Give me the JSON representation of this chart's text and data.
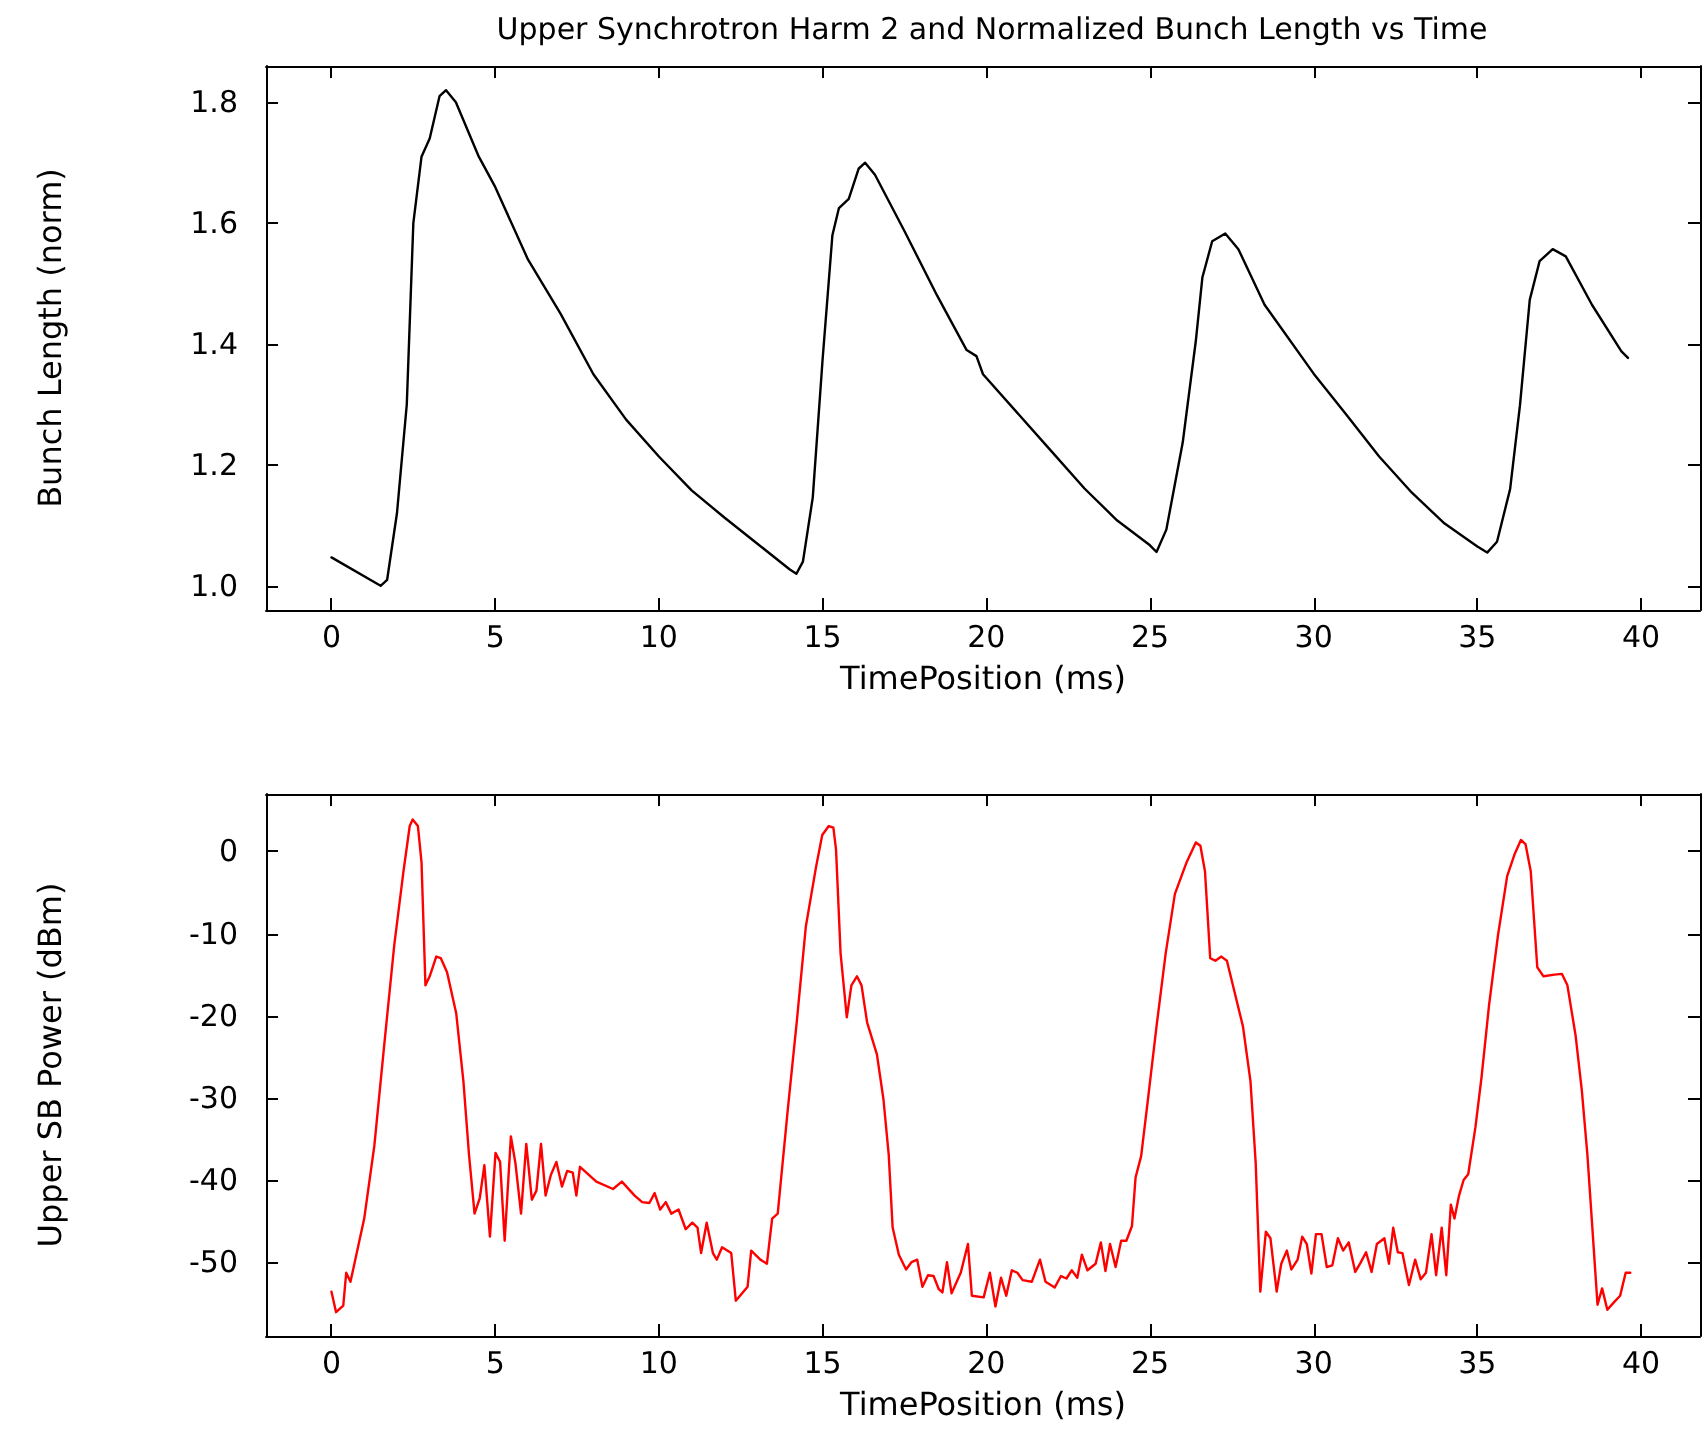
{
  "chart_data": [
    {
      "type": "line",
      "title": "Upper Synchrotron Harm 2 and Normalized Bunch Length vs Time",
      "xlabel": "TimePosition (ms)",
      "ylabel": "Bunch Length (norm)",
      "xlim": [
        -2,
        41.8
      ],
      "xticks": [
        0,
        5,
        10,
        15,
        20,
        25,
        30,
        35,
        40
      ],
      "ylim": [
        0.96,
        1.86
      ],
      "yticks": [
        {
          "value": 1,
          "label": "1.0"
        },
        1.2,
        1.4,
        1.6,
        1.8
      ],
      "grid": false,
      "marker": "none",
      "line_style": "solid",
      "series": [
        {
          "color": "#000000",
          "x": [
            0,
            1.5,
            1.7,
            2.0,
            2.3,
            2.5,
            2.75,
            3.0,
            3.3,
            3.5,
            3.8,
            4.5,
            5,
            6,
            7,
            8,
            9,
            10,
            11,
            12,
            13,
            14,
            14.2,
            14.4,
            14.7,
            15,
            15.3,
            15.5,
            15.8,
            16.1,
            16.3,
            16.6,
            17.5,
            18.5,
            19.4,
            19.7,
            19.9,
            21,
            22,
            23,
            24,
            25,
            25.2,
            25.5,
            26,
            26.4,
            26.6,
            26.9,
            27.3,
            27.7,
            28.5,
            30,
            31,
            32,
            33,
            34,
            35,
            35.3,
            35.6,
            36,
            36.3,
            36.6,
            36.9,
            37.3,
            37.7,
            38.5,
            39.4,
            39.6
          ],
          "values": [
            1.047,
            1.0,
            1.01,
            1.12,
            1.3,
            1.6,
            1.71,
            1.74,
            1.81,
            1.82,
            1.8,
            1.71,
            1.66,
            1.54,
            1.45,
            1.35,
            1.275,
            1.214,
            1.158,
            1.113,
            1.07,
            1.027,
            1.02,
            1.04,
            1.146,
            1.374,
            1.58,
            1.625,
            1.64,
            1.69,
            1.7,
            1.68,
            1.587,
            1.48,
            1.39,
            1.38,
            1.35,
            1.283,
            1.222,
            1.161,
            1.108,
            1.067,
            1.056,
            1.093,
            1.237,
            1.405,
            1.51,
            1.57,
            1.583,
            1.557,
            1.465,
            1.351,
            1.283,
            1.214,
            1.154,
            1.103,
            1.065,
            1.055,
            1.073,
            1.16,
            1.298,
            1.473,
            1.537,
            1.557,
            1.545,
            1.465,
            1.388,
            1.377
          ]
        }
      ]
    },
    {
      "type": "line",
      "xlabel": "TimePosition (ms)",
      "ylabel": "Upper SB Power (dBm)",
      "xlim": [
        -2,
        41.8
      ],
      "xticks": [
        0,
        5,
        10,
        15,
        20,
        25,
        30,
        35,
        40
      ],
      "ylim": [
        -59,
        7
      ],
      "yticks": [
        0,
        -10,
        -20,
        -30,
        -40,
        -50
      ],
      "grid": false,
      "marker": "none",
      "line_style": "solid",
      "series": [
        {
          "color": "#ff0000",
          "x": [
            0,
            0.14,
            0.36,
            0.45,
            0.58,
            1.0,
            1.31,
            1.61,
            1.92,
            2.2,
            2.39,
            2.48,
            2.64,
            2.75,
            2.87,
            3.0,
            3.2,
            3.34,
            3.53,
            3.81,
            4.03,
            4.2,
            4.37,
            4.53,
            4.67,
            4.84,
            5.01,
            5.15,
            5.29,
            5.48,
            5.62,
            5.79,
            5.95,
            6.12,
            6.26,
            6.4,
            6.54,
            6.7,
            6.87,
            7.04,
            7.2,
            7.37,
            7.48,
            7.59,
            8.09,
            8.6,
            8.87,
            9.26,
            9.49,
            9.71,
            9.87,
            10.04,
            10.21,
            10.38,
            10.6,
            10.82,
            11.02,
            11.18,
            11.29,
            11.46,
            11.65,
            11.77,
            11.93,
            12.21,
            12.35,
            12.71,
            12.82,
            13.1,
            13.3,
            13.46,
            13.63,
            13.94,
            14.21,
            14.49,
            14.8,
            14.99,
            15.19,
            15.33,
            15.41,
            15.55,
            15.74,
            15.88,
            16.05,
            16.19,
            16.36,
            16.66,
            16.86,
            17.02,
            17.14,
            17.33,
            17.55,
            17.72,
            17.89,
            18.05,
            18.22,
            18.39,
            18.55,
            18.66,
            18.8,
            18.94,
            19.22,
            19.44,
            19.56,
            19.92,
            20.11,
            20.28,
            20.45,
            20.61,
            20.78,
            20.95,
            21.11,
            21.39,
            21.64,
            21.81,
            22.09,
            22.28,
            22.45,
            22.61,
            22.78,
            22.92,
            23.09,
            23.34,
            23.5,
            23.64,
            23.78,
            23.95,
            24.12,
            24.28,
            24.45,
            24.56,
            24.73,
            24.92,
            25.2,
            25.48,
            25.76,
            26.12,
            26.4,
            26.54,
            26.68,
            26.84,
            27.0,
            27.18,
            27.35,
            27.57,
            27.84,
            28.07,
            28.23,
            28.37,
            28.54,
            28.68,
            28.87,
            29.01,
            29.18,
            29.32,
            29.51,
            29.65,
            29.79,
            29.93,
            30.07,
            30.24,
            30.4,
            30.57,
            30.74,
            30.9,
            31.07,
            31.27,
            31.43,
            31.6,
            31.77,
            31.93,
            32.16,
            32.3,
            32.43,
            32.57,
            32.71,
            32.91,
            33.1,
            33.27,
            33.43,
            33.6,
            33.74,
            33.91,
            34.05,
            34.19,
            34.3,
            34.44,
            34.58,
            34.72,
            34.94,
            35.13,
            35.36,
            35.63,
            35.91,
            36.13,
            36.33,
            36.47,
            36.63,
            36.83,
            37.02,
            37.36,
            37.58,
            37.75,
            38.0,
            38.19,
            38.36,
            38.53,
            38.67,
            38.81,
            38.97,
            39.17,
            39.36,
            39.53,
            39.67
          ],
          "values": [
            -53.6,
            -56.1,
            -55.3,
            -51.3,
            -52.4,
            -44.7,
            -35.8,
            -23.6,
            -11.3,
            -2.4,
            3.1,
            3.9,
            3.1,
            -1.3,
            -16.3,
            -15.2,
            -12.8,
            -13,
            -14.7,
            -19.7,
            -28,
            -36.9,
            -44.1,
            -42.2,
            -38.2,
            -46.9,
            -36.7,
            -37.8,
            -47.4,
            -34.7,
            -38,
            -44.1,
            -35.6,
            -42.4,
            -41.3,
            -35.6,
            -41.9,
            -39.4,
            -37.8,
            -40.8,
            -38.9,
            -39.1,
            -41.9,
            -38.4,
            -40.2,
            -41.1,
            -40.2,
            -41.9,
            -42.7,
            -42.8,
            -41.6,
            -43.6,
            -42.7,
            -44.1,
            -43.6,
            -46,
            -45.2,
            -45.8,
            -48.9,
            -45.2,
            -48.9,
            -49.7,
            -48.2,
            -48.9,
            -54.7,
            -53,
            -48.6,
            -49.7,
            -50.2,
            -44.7,
            -44.1,
            -31.3,
            -20.8,
            -9.1,
            -1.9,
            2,
            3.1,
            2.9,
            0.3,
            -12.4,
            -20.2,
            -16.3,
            -15.2,
            -16.3,
            -20.8,
            -24.7,
            -30.2,
            -36.9,
            -45.8,
            -49.1,
            -50.9,
            -50,
            -49.7,
            -53,
            -51.6,
            -51.7,
            -53.3,
            -53.7,
            -50,
            -53.8,
            -51.3,
            -47.8,
            -54.1,
            -54.3,
            -51.3,
            -55.4,
            -51.9,
            -54.1,
            -51,
            -51.3,
            -52.2,
            -52.4,
            -49.7,
            -52.4,
            -53.1,
            -51.7,
            -52,
            -51,
            -51.9,
            -49.1,
            -51,
            -50.2,
            -47.6,
            -51.1,
            -47.8,
            -50.6,
            -47.4,
            -47.4,
            -45.6,
            -39.7,
            -37.1,
            -30.8,
            -21.3,
            -12.4,
            -5.2,
            -1.3,
            1.1,
            0.7,
            -2.4,
            -13,
            -13.3,
            -12.8,
            -13.3,
            -16.9,
            -21.3,
            -28,
            -38,
            -53.6,
            -46.3,
            -47.1,
            -53.6,
            -50.2,
            -48.6,
            -50.9,
            -49.7,
            -46.9,
            -47.8,
            -51.4,
            -46.6,
            -46.6,
            -50.6,
            -50.4,
            -47.1,
            -48.6,
            -47.6,
            -51.2,
            -50.1,
            -48.8,
            -51.2,
            -47.8,
            -47.1,
            -50.2,
            -45.8,
            -48.8,
            -48.9,
            -52.8,
            -49.7,
            -52.1,
            -51.3,
            -46.6,
            -51.6,
            -45.8,
            -51.6,
            -43,
            -44.7,
            -41.9,
            -40,
            -39.3,
            -33.6,
            -27.4,
            -18.6,
            -10.2,
            -3,
            -0.4,
            1.4,
            0.9,
            -2.4,
            -14.1,
            -15.2,
            -15,
            -14.9,
            -16.3,
            -22.4,
            -29.1,
            -36.9,
            -46.9,
            -55.2,
            -53.2,
            -55.8,
            -54.9,
            -54.1,
            -51.3,
            -51.3
          ]
        }
      ]
    }
  ]
}
